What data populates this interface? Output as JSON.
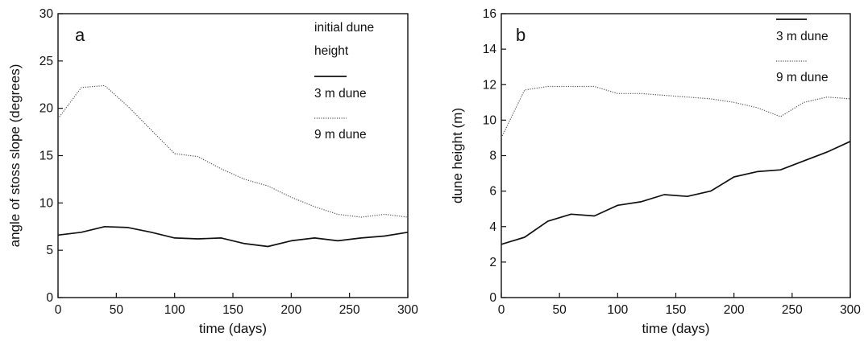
{
  "chart_data": [
    {
      "type": "line",
      "panel_label": "a",
      "xlabel": "time (days)",
      "ylabel": "angle of stoss slope (degrees)",
      "xlim": [
        0,
        300
      ],
      "ylim": [
        0,
        30
      ],
      "xticks": [
        0,
        50,
        100,
        150,
        200,
        250,
        300
      ],
      "yticks": [
        0,
        5,
        10,
        15,
        20,
        25,
        30
      ],
      "legend_title": [
        "initial dune",
        "height"
      ],
      "legend_position": "top-right",
      "grid": false,
      "series": [
        {
          "name": "3 m dune",
          "style": "solid",
          "color": "#111111",
          "x": [
            0,
            20,
            40,
            60,
            80,
            100,
            120,
            140,
            160,
            180,
            200,
            220,
            240,
            260,
            280,
            300
          ],
          "values": [
            6.6,
            6.9,
            7.5,
            7.4,
            6.9,
            6.3,
            6.2,
            6.3,
            5.7,
            5.4,
            6.0,
            6.3,
            6.0,
            6.3,
            6.5,
            6.9
          ]
        },
        {
          "name": "9 m dune",
          "style": "dotted",
          "color": "#555555",
          "x": [
            0,
            20,
            40,
            60,
            80,
            100,
            120,
            140,
            160,
            180,
            200,
            220,
            240,
            260,
            280,
            300
          ],
          "values": [
            18.9,
            22.2,
            22.4,
            20.2,
            17.7,
            15.2,
            14.9,
            13.6,
            12.5,
            11.8,
            10.6,
            9.6,
            8.8,
            8.5,
            8.8,
            8.5
          ]
        }
      ]
    },
    {
      "type": "line",
      "panel_label": "b",
      "xlabel": "time (days)",
      "ylabel": "dune height (m)",
      "xlim": [
        0,
        300
      ],
      "ylim": [
        0,
        16
      ],
      "xticks": [
        0,
        50,
        100,
        150,
        200,
        250,
        300
      ],
      "yticks": [
        0,
        2,
        4,
        6,
        8,
        10,
        12,
        14,
        16
      ],
      "legend_position": "top-right",
      "grid": false,
      "series": [
        {
          "name": "3 m dune",
          "style": "solid",
          "color": "#111111",
          "x": [
            0,
            20,
            40,
            60,
            80,
            100,
            120,
            140,
            160,
            180,
            200,
            220,
            240,
            260,
            280,
            300
          ],
          "values": [
            3.0,
            3.4,
            4.3,
            4.7,
            4.6,
            5.2,
            5.4,
            5.8,
            5.7,
            6.0,
            6.8,
            7.1,
            7.2,
            7.7,
            8.2,
            8.8
          ]
        },
        {
          "name": "9 m dune",
          "style": "dotted",
          "color": "#555555",
          "x": [
            0,
            20,
            40,
            60,
            80,
            100,
            120,
            140,
            160,
            180,
            200,
            220,
            240,
            260,
            280,
            300
          ],
          "values": [
            9.0,
            11.7,
            11.9,
            11.9,
            11.9,
            11.5,
            11.5,
            11.4,
            11.3,
            11.2,
            11.0,
            10.7,
            10.2,
            11.0,
            11.3,
            11.2
          ]
        }
      ]
    }
  ]
}
